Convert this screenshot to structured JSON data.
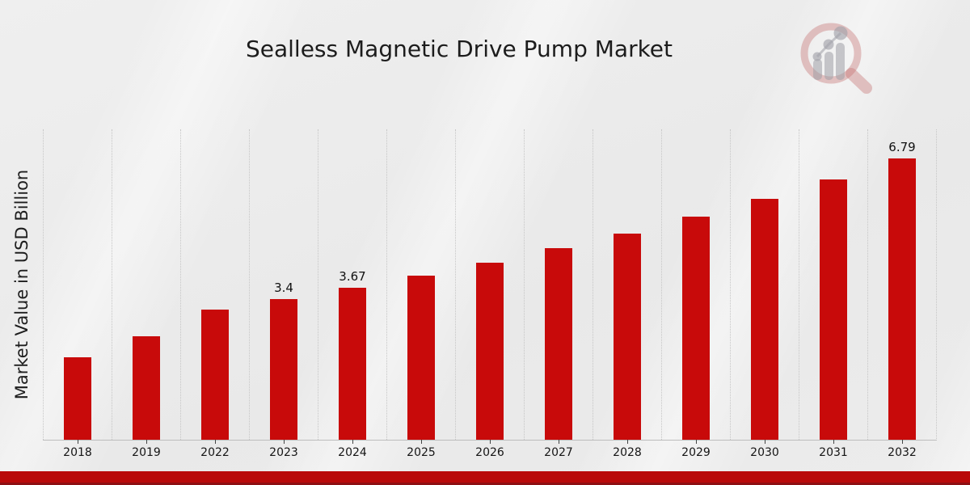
{
  "page": {
    "title": "Sealless Magnetic Drive Pump Market",
    "footer_color": "#b90a0a",
    "footer_edge_color": "#8d1013"
  },
  "logo": {
    "name": "magnifier-bar-chart-watermark",
    "ring_color": "rgba(198,115,115,0.40)",
    "bars_color": "rgba(158,158,166,0.55)"
  },
  "chart_data": {
    "type": "bar",
    "title": "Sealless Magnetic Drive Pump Market",
    "xlabel": "",
    "ylabel": "Market Value in USD Billion",
    "categories": [
      "2018",
      "2019",
      "2022",
      "2023",
      "2024",
      "2025",
      "2026",
      "2027",
      "2028",
      "2029",
      "2030",
      "2031",
      "2032"
    ],
    "values": [
      2.0,
      2.5,
      3.15,
      3.4,
      3.67,
      3.96,
      4.28,
      4.62,
      4.99,
      5.39,
      5.82,
      6.29,
      6.79
    ],
    "data_labels": {
      "2023": "3.4",
      "2024": "3.67",
      "2032": "6.79"
    },
    "ylim": [
      0,
      7.5
    ],
    "grid": "vertical-dotted",
    "legend": "none",
    "bar_color": "#c80a0a"
  }
}
